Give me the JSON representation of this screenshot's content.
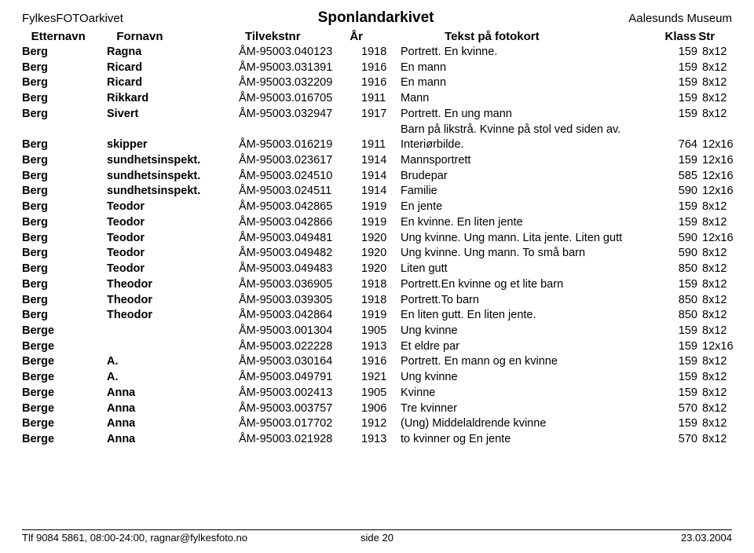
{
  "header": {
    "left": "FylkesFOTOarkivet",
    "center": "Sponlandarkivet",
    "right": "Aalesunds Museum"
  },
  "columns": {
    "etternavn": "Etternavn",
    "fornavn": "Fornavn",
    "tilvekstnr": "Tilvekstnr",
    "ar": "År",
    "tekst": "Tekst på fotokort",
    "klass": "Klass",
    "str": "Str"
  },
  "rows": [
    {
      "etternavn": "Berg",
      "fornavn": "Ragna",
      "tilvekst": "ÅM-95003.040123",
      "ar": "1918",
      "tekst": "Portrett. En kvinne.",
      "klass": "159",
      "str": "8x12"
    },
    {
      "etternavn": "Berg",
      "fornavn": "Ricard",
      "tilvekst": "ÅM-95003.031391",
      "ar": "1916",
      "tekst": "En mann",
      "klass": "159",
      "str": "8x12"
    },
    {
      "etternavn": "Berg",
      "fornavn": "Ricard",
      "tilvekst": "ÅM-95003.032209",
      "ar": "1916",
      "tekst": "En mann",
      "klass": "159",
      "str": "8x12"
    },
    {
      "etternavn": "Berg",
      "fornavn": "Rikkard",
      "tilvekst": "ÅM-95003.016705",
      "ar": "1911",
      "tekst": "Mann",
      "klass": "159",
      "str": "8x12"
    },
    {
      "etternavn": "Berg",
      "fornavn": "Sivert",
      "tilvekst": "ÅM-95003.032947",
      "ar": "1917",
      "tekst": "Portrett. En ung mann",
      "klass": "159",
      "str": "8x12"
    },
    {
      "etternavn": "",
      "fornavn": "",
      "tilvekst": "",
      "ar": "",
      "tekst": "Barn på likstrå. Kvinne på stol ved siden av.",
      "klass": "",
      "str": ""
    },
    {
      "etternavn": "Berg",
      "fornavn": "skipper",
      "tilvekst": "ÅM-95003.016219",
      "ar": "1911",
      "tekst": "Interiørbilde.",
      "klass": "764",
      "str": "12x16"
    },
    {
      "etternavn": "Berg",
      "fornavn": "sundhetsinspekt.",
      "tilvekst": "ÅM-95003.023617",
      "ar": "1914",
      "tekst": "Mannsportrett",
      "klass": "159",
      "str": "12x16"
    },
    {
      "etternavn": "Berg",
      "fornavn": "sundhetsinspekt.",
      "tilvekst": "ÅM-95003.024510",
      "ar": "1914",
      "tekst": "Brudepar",
      "klass": "585",
      "str": "12x16"
    },
    {
      "etternavn": "Berg",
      "fornavn": "sundhetsinspekt.",
      "tilvekst": "ÅM-95003.024511",
      "ar": "1914",
      "tekst": "Familie",
      "klass": "590",
      "str": "12x16"
    },
    {
      "etternavn": "Berg",
      "fornavn": "Teodor",
      "tilvekst": "ÅM-95003.042865",
      "ar": "1919",
      "tekst": "En jente",
      "klass": "159",
      "str": "8x12"
    },
    {
      "etternavn": "Berg",
      "fornavn": "Teodor",
      "tilvekst": "ÅM-95003.042866",
      "ar": "1919",
      "tekst": "En kvinne. En liten jente",
      "klass": "159",
      "str": "8x12"
    },
    {
      "etternavn": "Berg",
      "fornavn": "Teodor",
      "tilvekst": "ÅM-95003.049481",
      "ar": "1920",
      "tekst": "Ung kvinne. Ung mann. Lita jente. Liten gutt",
      "klass": "590",
      "str": "12x16"
    },
    {
      "etternavn": "Berg",
      "fornavn": "Teodor",
      "tilvekst": "ÅM-95003.049482",
      "ar": "1920",
      "tekst": "Ung kvinne. Ung mann. To små barn",
      "klass": "590",
      "str": "8x12"
    },
    {
      "etternavn": "Berg",
      "fornavn": "Teodor",
      "tilvekst": "ÅM-95003.049483",
      "ar": "1920",
      "tekst": "Liten  gutt",
      "klass": "850",
      "str": "8x12"
    },
    {
      "etternavn": "Berg",
      "fornavn": "Theodor",
      "tilvekst": "ÅM-95003.036905",
      "ar": "1918",
      "tekst": "Portrett.En kvinne og et lite barn",
      "klass": "159",
      "str": "8x12"
    },
    {
      "etternavn": "Berg",
      "fornavn": "Theodor",
      "tilvekst": "ÅM-95003.039305",
      "ar": "1918",
      "tekst": "Portrett.To barn",
      "klass": "850",
      "str": "8x12"
    },
    {
      "etternavn": "Berg",
      "fornavn": "Theodor",
      "tilvekst": "ÅM-95003.042864",
      "ar": "1919",
      "tekst": "En liten gutt. En liten jente.",
      "klass": "850",
      "str": "8x12"
    },
    {
      "etternavn": "Berge",
      "fornavn": "",
      "tilvekst": "ÅM-95003.001304",
      "ar": "1905",
      "tekst": "Ung kvinne",
      "klass": "159",
      "str": "8x12"
    },
    {
      "etternavn": "Berge",
      "fornavn": "",
      "tilvekst": "ÅM-95003.022228",
      "ar": "1913",
      "tekst": "Et eldre par",
      "klass": "159",
      "str": "12x16"
    },
    {
      "etternavn": "Berge",
      "fornavn": "A.",
      "tilvekst": "ÅM-95003.030164",
      "ar": "1916",
      "tekst": "Portrett. En mann og en kvinne",
      "klass": "159",
      "str": "8x12"
    },
    {
      "etternavn": "Berge",
      "fornavn": "A.",
      "tilvekst": "ÅM-95003.049791",
      "ar": "1921",
      "tekst": "Ung kvinne",
      "klass": "159",
      "str": "8x12"
    },
    {
      "etternavn": "Berge",
      "fornavn": "Anna",
      "tilvekst": "ÅM-95003.002413",
      "ar": "1905",
      "tekst": "Kvinne",
      "klass": "159",
      "str": "8x12"
    },
    {
      "etternavn": "Berge",
      "fornavn": "Anna",
      "tilvekst": "ÅM-95003.003757",
      "ar": "1906",
      "tekst": "Tre kvinner",
      "klass": "570",
      "str": "8x12"
    },
    {
      "etternavn": "Berge",
      "fornavn": "Anna",
      "tilvekst": "ÅM-95003.017702",
      "ar": "1912",
      "tekst": "(Ung) Middelaldrende kvinne",
      "klass": "159",
      "str": "8x12"
    },
    {
      "etternavn": "Berge",
      "fornavn": "Anna",
      "tilvekst": "ÅM-95003.021928",
      "ar": "1913",
      "tekst": "to kvinner og En jente",
      "klass": "570",
      "str": "8x12"
    }
  ],
  "footer": {
    "left": "Tlf 9084 5861, 08:00-24:00, ragnar@fylkesfoto.no",
    "center": "side  20",
    "right": "23.03.2004"
  }
}
